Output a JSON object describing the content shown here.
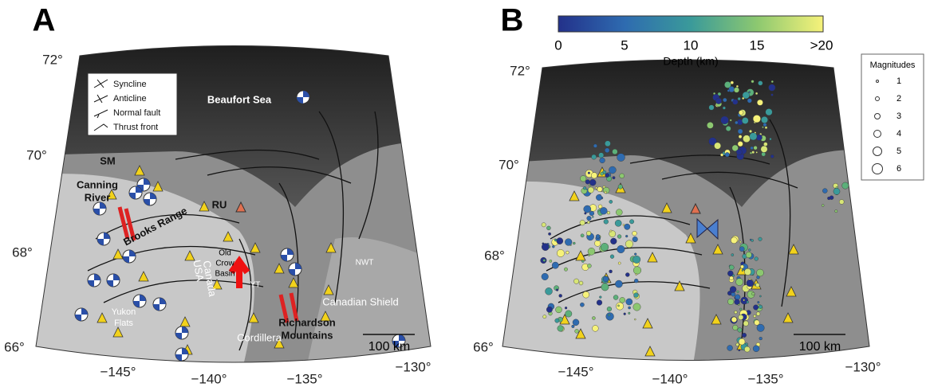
{
  "panel_a": {
    "label": "A",
    "lat_labels": [
      "72°",
      "70°",
      "68°",
      "66°"
    ],
    "lon_labels": [
      "−145°",
      "−140°",
      "−135°",
      "−130°"
    ],
    "legend": [
      "Syncline",
      "Anticline",
      "Normal fault",
      "Thrust front"
    ],
    "places": {
      "sea": "Beaufort Sea",
      "sm": "SM",
      "canning": [
        "Canning",
        "River"
      ],
      "brooks": "Brooks Range",
      "ru": "RU",
      "old_crow": [
        "Old",
        "Crow",
        "Basin"
      ],
      "usa": "USA",
      "canada": "Canada",
      "yt": "YT",
      "nwt": "NWT",
      "shield": "Canadian Shield",
      "richardson": [
        "Richardson",
        "Mountains"
      ],
      "yukon_flats": [
        "Yukon",
        "Flats"
      ],
      "cordillera": "Cordillera"
    },
    "scale": "100 km"
  },
  "panel_b": {
    "label": "B",
    "colorbar_ticks": [
      "0",
      "5",
      "10",
      "15",
      ">20"
    ],
    "colorbar_title": "Depth (km)",
    "magnitudes_title": "Magnitudes",
    "magnitudes": [
      "1",
      "2",
      "3",
      "4",
      "5",
      "6"
    ],
    "lat_labels": [
      "72°",
      "70°",
      "68°",
      "66°"
    ],
    "lon_labels": [
      "−145°",
      "−140°",
      "−135°",
      "−130°"
    ],
    "scale": "100 km"
  }
}
